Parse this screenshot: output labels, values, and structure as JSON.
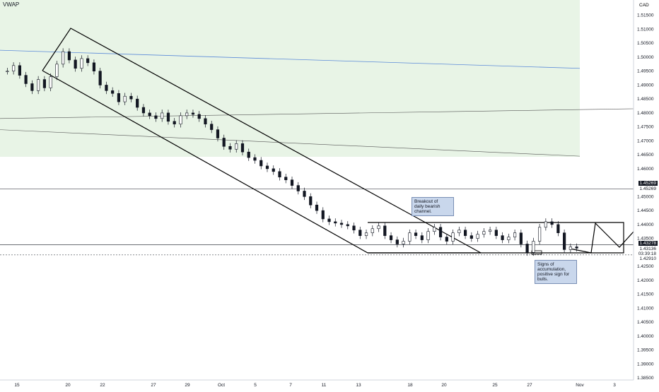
{
  "indicator_label": "VWAP",
  "currency": "CAD",
  "colors": {
    "vwap_band": "#e8f4e6",
    "vwap_line": "#5b8ad8",
    "grid": "#d1d4dc",
    "candle": "#131722",
    "tag_1": "#131722",
    "tag_2": "#131722",
    "current_line": "#131722"
  },
  "annotations": {
    "breakout": "Breakout of\ndaily bearish\nchannel.",
    "accumulation": "Signs of\naccumulation,\npositive sign for\nbulls."
  },
  "price_tags": {
    "level_1": "1.45269",
    "level_1_sub": "1.45269",
    "current": "1.43278",
    "current_sub": "1.43136",
    "countdown": "03:39:18",
    "lower": "1.42910"
  },
  "chart_data": {
    "type": "candlestick",
    "ylim": [
      1.385,
      1.52
    ],
    "y_ticks": [
      1.515,
      1.51,
      1.505,
      1.5,
      1.495,
      1.49,
      1.485,
      1.48,
      1.475,
      1.47,
      1.465,
      1.46,
      1.45,
      1.445,
      1.44,
      1.435,
      1.425,
      1.42,
      1.415,
      1.41,
      1.405,
      1.4,
      1.395,
      1.39,
      1.385
    ],
    "x_tick_labels": [
      "15",
      "20",
      "22",
      "27",
      "29",
      "Oct",
      "5",
      "7",
      "11",
      "13",
      "18",
      "20",
      "25",
      "27",
      "Nov",
      "3"
    ],
    "horizontal_levels": [
      1.45269,
      1.43278,
      1.4291
    ],
    "close_series": [
      1.495,
      1.497,
      1.4935,
      1.4905,
      1.488,
      1.492,
      1.489,
      1.493,
      1.4975,
      1.502,
      1.499,
      1.496,
      1.4995,
      1.498,
      1.495,
      1.49,
      1.488,
      1.487,
      1.484,
      1.486,
      1.485,
      1.482,
      1.48,
      1.479,
      1.478,
      1.48,
      1.477,
      1.476,
      1.479,
      1.48,
      1.4795,
      1.478,
      1.476,
      1.474,
      1.471,
      1.468,
      1.467,
      1.469,
      1.466,
      1.464,
      1.463,
      1.461,
      1.46,
      1.459,
      1.457,
      1.456,
      1.454,
      1.452,
      1.45,
      1.447,
      1.445,
      1.442,
      1.441,
      1.4405,
      1.44,
      1.4395,
      1.438,
      1.436,
      1.437,
      1.4385,
      1.4395,
      1.436,
      1.4345,
      1.433,
      1.434,
      1.437,
      1.436,
      1.4345,
      1.4375,
      1.439,
      1.4355,
      1.434,
      1.437,
      1.438,
      1.436,
      1.435,
      1.4365,
      1.4375,
      1.438,
      1.436,
      1.4345,
      1.4355,
      1.437,
      1.433,
      1.43,
      1.434,
      1.439,
      1.441,
      1.44,
      1.437,
      1.431,
      1.432,
      1.4315
    ],
    "vwap_values": [
      1.5025,
      1.496
    ],
    "vwap_upper": [
      1.478,
      1.4815
    ],
    "vwap_lower": [
      1.474,
      1.4645
    ]
  }
}
